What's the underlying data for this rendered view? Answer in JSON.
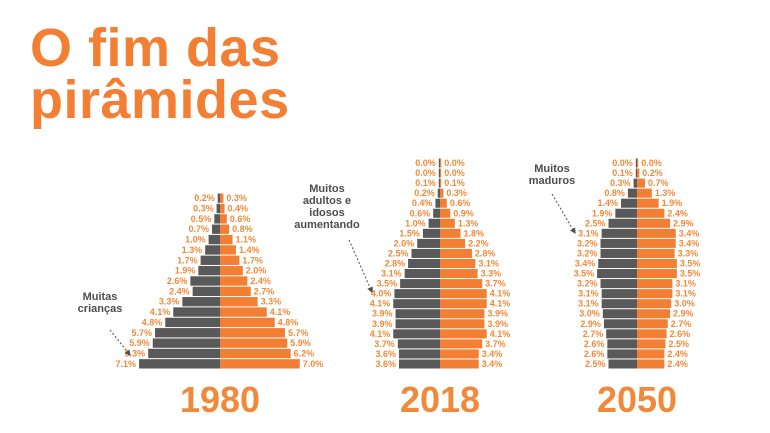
{
  "title": {
    "line1": "O fim das",
    "line2": "pirâmides"
  },
  "colors": {
    "male": "#595959",
    "female": "#f37f35",
    "accent": "#f37f35",
    "annotation": "#4d4d4d"
  },
  "chart_data": [
    {
      "type": "bar",
      "year": "1980",
      "annotation": [
        "Muitas",
        "crianças"
      ],
      "male": [
        "0.2%",
        "0.3%",
        "0.5%",
        "0.7%",
        "1.0%",
        "1.3%",
        "1.7%",
        "1.9%",
        "2.6%",
        "2.4%",
        "3.3%",
        "4.1%",
        "4.8%",
        "5.7%",
        "5.9%",
        "6.3%",
        "7.1%"
      ],
      "female": [
        "0.3%",
        "0.4%",
        "0.6%",
        "0.8%",
        "1.1%",
        "1.4%",
        "1.7%",
        "2.0%",
        "2.4%",
        "2.7%",
        "3.3%",
        "4.1%",
        "4.8%",
        "5.7%",
        "5.9%",
        "6.2%",
        "7.0%"
      ]
    },
    {
      "type": "bar",
      "year": "2018",
      "annotation": [
        "Muitos",
        "adultos e",
        "idosos",
        "aumentando"
      ],
      "male": [
        "0.0%",
        "0.0%",
        "0.1%",
        "0.2%",
        "0.4%",
        "0.6%",
        "1.0%",
        "1.5%",
        "2.0%",
        "2.5%",
        "2.8%",
        "3.1%",
        "3.5%",
        "4.0%",
        "4.1%",
        "3.9%",
        "3.9%",
        "4.1%",
        "3.7%",
        "3.6%",
        "3.6%"
      ],
      "female": [
        "0.0%",
        "0.0%",
        "0.1%",
        "0.3%",
        "0.6%",
        "0.9%",
        "1.3%",
        "1.8%",
        "2.2%",
        "2.8%",
        "3.1%",
        "3.3%",
        "3.7%",
        "4.1%",
        "4.1%",
        "3.9%",
        "3.9%",
        "4.1%",
        "3.7%",
        "3.4%",
        "3.4%"
      ]
    },
    {
      "type": "bar",
      "year": "2050",
      "annotation": [
        "Muitos",
        "maduros"
      ],
      "male": [
        "0.0%",
        "0.1%",
        "0.3%",
        "0.8%",
        "1.4%",
        "1.9%",
        "2.5%",
        "3.1%",
        "3.2%",
        "3.2%",
        "3.4%",
        "3.5%",
        "3.2%",
        "3.1%",
        "3.1%",
        "3.0%",
        "2.9%",
        "2.7%",
        "2.6%",
        "2.6%",
        "2.5%"
      ],
      "female": [
        "0.0%",
        "0.2%",
        "0.7%",
        "1.3%",
        "1.9%",
        "2.4%",
        "2.9%",
        "3.4%",
        "3.4%",
        "3.3%",
        "3.5%",
        "3.5%",
        "3.1%",
        "3.1%",
        "3.0%",
        "2.9%",
        "2.7%",
        "2.6%",
        "2.5%",
        "2.4%",
        "2.4%"
      ]
    }
  ]
}
